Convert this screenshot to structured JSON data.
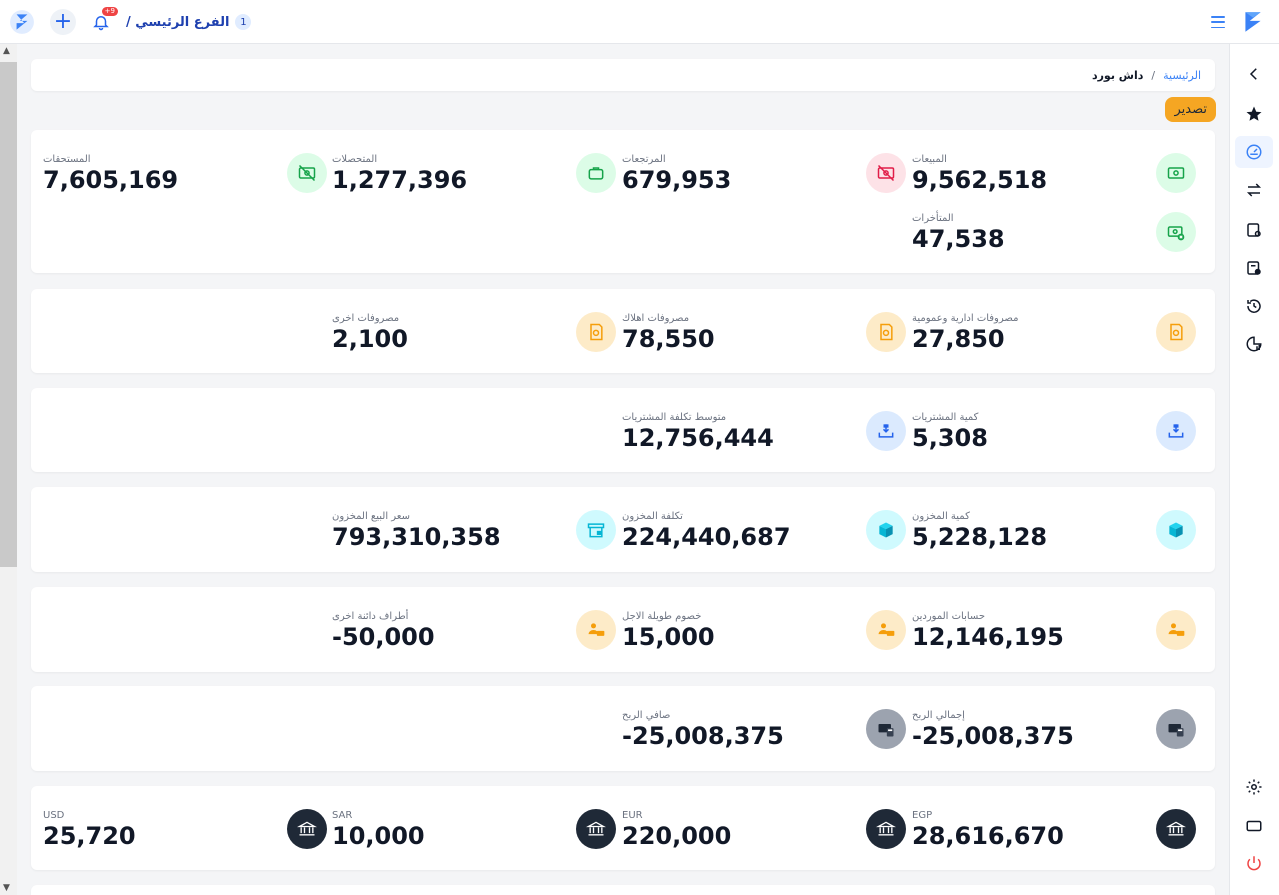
{
  "header": {
    "branch_name": "الفرع الرئيسي /",
    "branch_number": "1",
    "notification_count": "+9",
    "icons": {
      "logo": "logo-icon",
      "menu": "hamburger-icon",
      "plus": "plus-icon",
      "bell": "bell-icon"
    }
  },
  "breadcrumb": {
    "home": "الرئيسية",
    "separator": "/",
    "current": "داش بورد"
  },
  "toolbar": {
    "export_label": "تصدير"
  },
  "cards": [
    {
      "stats": [
        {
          "label": "المبيعات",
          "value": "9,562,518",
          "icon": "cash-icon",
          "color": "green"
        },
        {
          "label": "المرتجعات",
          "value": "679,953",
          "icon": "cash-off-icon",
          "color": "pink"
        },
        {
          "label": "المتحصلات",
          "value": "1,277,396",
          "icon": "briefcase-icon",
          "color": "green"
        },
        {
          "label": "المستحقات",
          "value": "7,605,169",
          "icon": "cash-off-icon",
          "color": "green"
        },
        {
          "label": "المتأخرات",
          "value": "47,538",
          "icon": "cash-x-icon",
          "color": "green"
        }
      ]
    },
    {
      "stats": [
        {
          "label": "مصروفات ادارية وعمومية",
          "value": "27,850",
          "icon": "receipt-icon",
          "color": "orange"
        },
        {
          "label": "مصروفات اهلاك",
          "value": "78,550",
          "icon": "receipt-icon",
          "color": "orange"
        },
        {
          "label": "مصروفات اخرى",
          "value": "2,100",
          "icon": "receipt-icon",
          "color": "orange"
        }
      ]
    },
    {
      "stats": [
        {
          "label": "كمية المشتريات",
          "value": "5,308",
          "icon": "download-box-icon",
          "color": "blue"
        },
        {
          "label": "متوسط تكلفة المشتريات",
          "value": "12,756,444",
          "icon": "download-box-icon",
          "color": "blue"
        }
      ]
    },
    {
      "stats": [
        {
          "label": "كمية المخزون",
          "value": "5,228,128",
          "icon": "cube-icon",
          "color": "cyan"
        },
        {
          "label": "تكلفة المخزون",
          "value": "224,440,687",
          "icon": "cube-icon",
          "color": "cyan"
        },
        {
          "label": "سعر البيع المخزون",
          "value": "793,310,358",
          "icon": "store-icon",
          "color": "cyan"
        }
      ]
    },
    {
      "stats": [
        {
          "label": "حسابات الموردين",
          "value": "12,146,195",
          "icon": "users-cash-icon",
          "color": "orange"
        },
        {
          "label": "خصوم طويلة الاجل",
          "value": "15,000",
          "icon": "users-cash-icon",
          "color": "orange"
        },
        {
          "label": "أطراف دائنة اخرى",
          "value": "-50,000",
          "icon": "users-cash-icon",
          "color": "orange"
        }
      ]
    },
    {
      "stats": [
        {
          "label": "إجمالي الربح",
          "value": "-25,008,375",
          "icon": "calculator-cash-icon",
          "color": "gray"
        },
        {
          "label": "صافي الربح",
          "value": "-25,008,375",
          "icon": "calculator-cash-icon",
          "color": "gray"
        }
      ]
    },
    {
      "stats": [
        {
          "label": "EGP",
          "value": "28,616,670",
          "icon": "bank-icon",
          "color": "dark"
        },
        {
          "label": "EUR",
          "value": "220,000",
          "icon": "bank-icon",
          "color": "dark"
        },
        {
          "label": "SAR",
          "value": "10,000",
          "icon": "bank-icon",
          "color": "dark"
        },
        {
          "label": "USD",
          "value": "25,720",
          "icon": "bank-icon",
          "color": "dark"
        }
      ]
    }
  ],
  "sidebar": {
    "items": [
      {
        "icon": "chevron-left-icon"
      },
      {
        "icon": "star-icon"
      },
      {
        "icon": "dashboard-icon",
        "active": true
      },
      {
        "icon": "transfer-icon"
      },
      {
        "icon": "invoice-icon"
      },
      {
        "icon": "invoice-add-icon"
      },
      {
        "icon": "history-icon"
      },
      {
        "icon": "report-chart-icon"
      },
      {
        "icon": "gear-icon"
      },
      {
        "icon": "window-icon"
      },
      {
        "icon": "power-icon"
      }
    ]
  },
  "colors": {
    "accent": "#3b82f6",
    "export": "#f5a623",
    "green_icon": "#16a34a",
    "pink_icon": "#e11d48",
    "orange_icon": "#f59e0b",
    "blue_icon": "#2563eb",
    "cyan_icon": "#06b6d4"
  }
}
